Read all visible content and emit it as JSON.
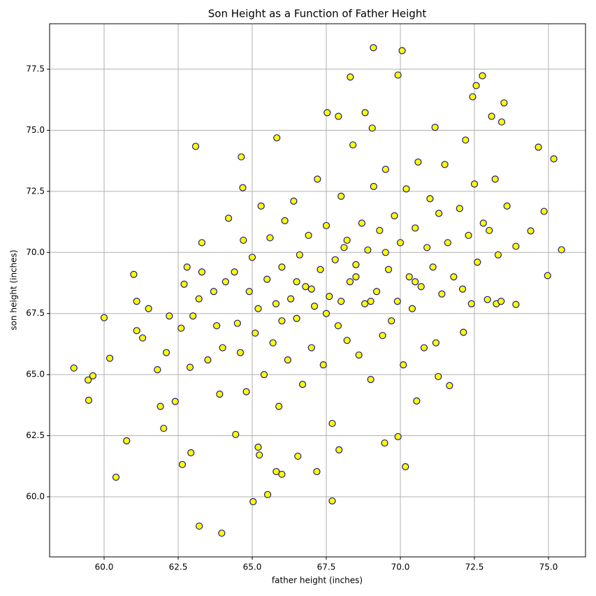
{
  "chart_data": {
    "type": "scatter",
    "title": "Son Height as a Function of Father Height",
    "xlabel": "father height (inches)",
    "ylabel": "son height (inches)",
    "color": "#ffff00",
    "edge_color": "#1a1a80",
    "grid": true,
    "xlim": [
      58.16,
      76.25
    ],
    "ylim": [
      57.54,
      79.36
    ],
    "xticks": [
      {
        "value": 60,
        "label": "60.0"
      },
      {
        "value": 62.5,
        "label": "62.5"
      },
      {
        "value": 65,
        "label": "65.0"
      },
      {
        "value": 67.5,
        "label": "67.5"
      },
      {
        "value": 70,
        "label": "70.0"
      },
      {
        "value": 72.5,
        "label": "72.5"
      },
      {
        "value": 75,
        "label": "75.0"
      }
    ],
    "yticks": [
      {
        "value": 60,
        "label": "60.0"
      },
      {
        "value": 62.5,
        "label": "62.5"
      },
      {
        "value": 65,
        "label": "65.0"
      },
      {
        "value": 67.5,
        "label": "67.5"
      },
      {
        "value": 70,
        "label": "70.0"
      },
      {
        "value": 72.5,
        "label": "72.5"
      },
      {
        "value": 75,
        "label": "75.0"
      },
      {
        "value": 77.5,
        "label": "77.5"
      }
    ],
    "x": [
      58.98,
      59.46,
      59.62,
      59.48,
      60.0,
      60.19,
      60.4,
      60.76,
      69.09,
      70.06,
      69.92,
      68.31,
      72.77,
      72.56,
      72.44,
      73.5,
      73.08,
      73.42,
      67.53,
      67.91,
      68.81,
      69.05,
      71.17,
      65.83,
      63.09,
      74.66,
      75.18,
      64.63,
      64.68,
      75.44,
      74.85,
      74.4,
      74.97,
      73.9,
      63.21,
      63.97,
      67.7,
      65.03,
      65.52,
      65.81,
      66.0,
      67.18,
      70.17,
      67.93,
      69.47,
      69.92,
      64.44,
      66.54,
      65.2,
      65.24,
      62.01,
      62.64,
      62.93,
      71.66,
      70.55,
      71.28,
      72.13,
      72.94,
      73.9,
      73.24,
      61.0,
      61.1,
      61.1,
      61.3,
      61.5,
      61.8,
      61.9,
      62.1,
      62.2,
      62.4,
      62.6,
      62.7,
      62.8,
      62.9,
      63.0,
      63.2,
      63.3,
      63.3,
      63.5,
      63.7,
      63.8,
      63.9,
      64.0,
      64.1,
      64.2,
      64.4,
      64.5,
      64.6,
      64.7,
      64.8,
      64.9,
      65.0,
      65.1,
      65.2,
      65.3,
      65.4,
      65.5,
      65.6,
      65.7,
      65.8,
      65.9,
      66.0,
      66.1,
      66.2,
      66.3,
      66.4,
      66.5,
      66.6,
      66.7,
      66.8,
      66.9,
      67.0,
      67.1,
      67.2,
      67.3,
      67.4,
      67.5,
      67.6,
      67.7,
      67.8,
      67.9,
      68.0,
      68.1,
      68.2,
      68.3,
      68.4,
      68.5,
      68.6,
      68.7,
      68.8,
      68.9,
      69.0,
      69.1,
      69.2,
      69.3,
      69.4,
      69.5,
      69.6,
      69.7,
      69.8,
      69.9,
      70.0,
      70.1,
      70.2,
      70.3,
      70.4,
      70.5,
      70.6,
      70.7,
      70.8,
      70.9,
      71.0,
      71.1,
      71.2,
      71.3,
      71.4,
      71.5,
      71.6,
      71.8,
      72.0,
      72.1,
      72.2,
      72.3,
      72.4,
      72.5,
      72.6,
      72.8,
      73.0,
      73.2,
      73.3,
      73.4,
      73.6,
      68.0,
      67.0,
      68.5,
      69.0,
      66.5,
      67.5,
      68.2,
      69.5,
      66.0,
      70.5
    ],
    "values": [
      65.27,
      64.78,
      64.95,
      63.95,
      67.33,
      65.67,
      60.8,
      62.29,
      78.38,
      78.26,
      77.26,
      77.18,
      77.23,
      76.83,
      76.37,
      76.12,
      75.57,
      75.34,
      75.72,
      75.57,
      75.72,
      75.09,
      75.12,
      74.69,
      74.34,
      74.31,
      73.83,
      73.91,
      72.65,
      70.11,
      71.68,
      70.88,
      69.05,
      70.25,
      58.8,
      58.51,
      59.83,
      59.8,
      60.09,
      61.03,
      60.92,
      61.03,
      61.23,
      61.92,
      62.2,
      62.46,
      62.55,
      61.66,
      62.03,
      61.71,
      62.8,
      61.32,
      61.8,
      64.55,
      63.92,
      64.92,
      66.73,
      68.07,
      67.87,
      67.9,
      69.1,
      68.0,
      66.8,
      66.5,
      67.7,
      65.2,
      63.7,
      65.9,
      67.4,
      63.9,
      66.9,
      68.7,
      69.4,
      65.3,
      67.4,
      68.1,
      69.2,
      70.4,
      65.6,
      68.4,
      67.0,
      64.2,
      66.1,
      68.8,
      71.4,
      69.2,
      67.1,
      65.9,
      70.5,
      64.3,
      68.4,
      69.8,
      66.7,
      67.7,
      71.9,
      65.0,
      68.9,
      70.6,
      66.3,
      67.9,
      63.7,
      69.4,
      71.3,
      65.6,
      68.1,
      72.1,
      67.3,
      69.9,
      64.6,
      68.6,
      70.7,
      66.1,
      67.8,
      73.0,
      69.3,
      65.4,
      71.1,
      68.2,
      63.0,
      69.7,
      67.0,
      72.3,
      70.2,
      66.4,
      68.8,
      74.4,
      69.5,
      65.8,
      71.2,
      67.9,
      70.1,
      64.8,
      72.7,
      68.4,
      70.9,
      66.6,
      73.4,
      69.3,
      67.2,
      71.5,
      68.0,
      70.4,
      65.4,
      72.6,
      69.0,
      67.7,
      71.0,
      73.7,
      68.6,
      66.1,
      70.2,
      72.2,
      69.4,
      66.3,
      71.6,
      68.3,
      73.6,
      70.4,
      69.0,
      71.8,
      68.5,
      74.6,
      70.7,
      67.9,
      72.8,
      69.6,
      71.2,
      70.9,
      73.0,
      69.9,
      68.0,
      71.9,
      68.0,
      68.5,
      69.0,
      68.0,
      68.8,
      67.5,
      70.5,
      70.0,
      67.2,
      68.8
    ]
  }
}
